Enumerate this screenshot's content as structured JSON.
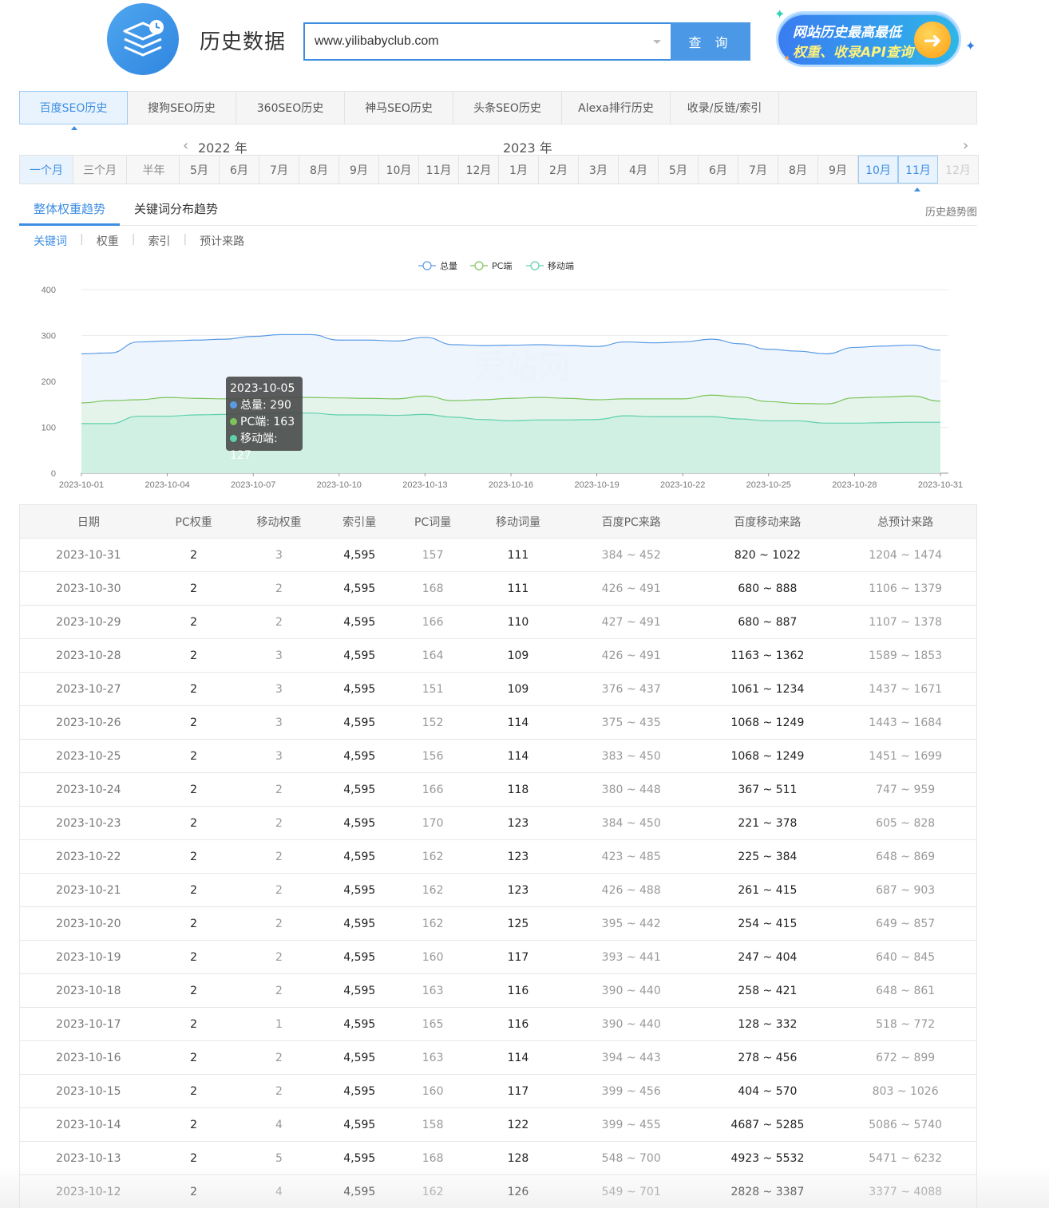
{
  "header": {
    "title": "历史数据",
    "search_value": "www.yilibabyclub.com",
    "search_button": "查 询",
    "promo_line1": "网站历史最高最低",
    "promo_line2": "权重、收录API查询"
  },
  "main_tabs": [
    "百度SEO历史",
    "搜狗SEO历史",
    "360SEO历史",
    "神马SEO历史",
    "头条SEO历史",
    "Alexa排行历史",
    "收录/反链/索引"
  ],
  "ranges": [
    "一个月",
    "三个月",
    "半年"
  ],
  "years": {
    "y2022": "2022 年",
    "y2023": "2023 年"
  },
  "months": [
    "5月",
    "6月",
    "7月",
    "8月",
    "9月",
    "10月",
    "11月",
    "12月",
    "1月",
    "2月",
    "3月",
    "4月",
    "5月",
    "6月",
    "7月",
    "8月",
    "9月",
    "10月",
    "11月",
    "12月"
  ],
  "sub_tabs": {
    "trend": "整体权重趋势",
    "keyword_dist": "关键词分布趋势",
    "history_chart": "历史趋势图"
  },
  "metric_tabs": [
    "关键词",
    "权重",
    "索引",
    "预计来路"
  ],
  "watermark": "爱站网",
  "tooltip": {
    "date": "2023-10-05",
    "total": "总量: 290",
    "pc": "PC端: 163",
    "mobile": "移动端: 127"
  },
  "colors": {
    "total": "#5b9be6",
    "pc": "#7cc45a",
    "mobile": "#5fd0ad",
    "accent": "#3d8ee2"
  },
  "chart_data": {
    "type": "area",
    "x": [
      "2023-10-01",
      "2023-10-02",
      "2023-10-03",
      "2023-10-04",
      "2023-10-05",
      "2023-10-06",
      "2023-10-07",
      "2023-10-08",
      "2023-10-09",
      "2023-10-10",
      "2023-10-11",
      "2023-10-12",
      "2023-10-13",
      "2023-10-14",
      "2023-10-15",
      "2023-10-16",
      "2023-10-17",
      "2023-10-18",
      "2023-10-19",
      "2023-10-20",
      "2023-10-21",
      "2023-10-22",
      "2023-10-23",
      "2023-10-24",
      "2023-10-25",
      "2023-10-26",
      "2023-10-27",
      "2023-10-28",
      "2023-10-29",
      "2023-10-30",
      "2023-10-31"
    ],
    "xticks": [
      "2023-10-01",
      "2023-10-04",
      "2023-10-07",
      "2023-10-10",
      "2023-10-13",
      "2023-10-16",
      "2023-10-19",
      "2023-10-22",
      "2023-10-25",
      "2023-10-28",
      "2023-10-31"
    ],
    "yticks": [
      0,
      100,
      200,
      300,
      400
    ],
    "ylim": [
      0,
      400
    ],
    "legend_position": "top-center",
    "series": [
      {
        "name": "总量",
        "values": [
          260,
          262,
          286,
          288,
          290,
          292,
          298,
          302,
          302,
          290,
          290,
          288,
          296,
          280,
          278,
          279,
          280,
          278,
          276,
          286,
          284,
          286,
          292,
          282,
          270,
          266,
          260,
          274,
          277,
          279,
          268
        ]
      },
      {
        "name": "PC端",
        "values": [
          153,
          158,
          160,
          165,
          163,
          162,
          162,
          165,
          165,
          164,
          163,
          162,
          168,
          158,
          160,
          163,
          165,
          163,
          160,
          162,
          162,
          162,
          170,
          166,
          156,
          152,
          151,
          164,
          166,
          168,
          157
        ]
      },
      {
        "name": "移动端",
        "values": [
          108,
          108,
          124,
          124,
          127,
          128,
          130,
          131,
          131,
          127,
          127,
          126,
          128,
          122,
          117,
          114,
          116,
          116,
          117,
          125,
          123,
          123,
          123,
          118,
          114,
          114,
          109,
          109,
          110,
          111,
          111
        ]
      }
    ]
  },
  "table": {
    "headers": [
      "日期",
      "PC权重",
      "移动权重",
      "索引量",
      "PC词量",
      "移动词量",
      "百度PC来路",
      "百度移动来路",
      "总预计来路"
    ],
    "rows": [
      [
        "2023-10-31",
        "2",
        "3",
        "4,595",
        "157",
        "111",
        "384 ~ 452",
        "820 ~ 1022",
        "1204 ~ 1474"
      ],
      [
        "2023-10-30",
        "2",
        "2",
        "4,595",
        "168",
        "111",
        "426 ~ 491",
        "680 ~ 888",
        "1106 ~ 1379"
      ],
      [
        "2023-10-29",
        "2",
        "2",
        "4,595",
        "166",
        "110",
        "427 ~ 491",
        "680 ~ 887",
        "1107 ~ 1378"
      ],
      [
        "2023-10-28",
        "2",
        "3",
        "4,595",
        "164",
        "109",
        "426 ~ 491",
        "1163 ~ 1362",
        "1589 ~ 1853"
      ],
      [
        "2023-10-27",
        "2",
        "3",
        "4,595",
        "151",
        "109",
        "376 ~ 437",
        "1061 ~ 1234",
        "1437 ~ 1671"
      ],
      [
        "2023-10-26",
        "2",
        "3",
        "4,595",
        "152",
        "114",
        "375 ~ 435",
        "1068 ~ 1249",
        "1443 ~ 1684"
      ],
      [
        "2023-10-25",
        "2",
        "3",
        "4,595",
        "156",
        "114",
        "383 ~ 450",
        "1068 ~ 1249",
        "1451 ~ 1699"
      ],
      [
        "2023-10-24",
        "2",
        "2",
        "4,595",
        "166",
        "118",
        "380 ~ 448",
        "367 ~ 511",
        "747 ~ 959"
      ],
      [
        "2023-10-23",
        "2",
        "2",
        "4,595",
        "170",
        "123",
        "384 ~ 450",
        "221 ~ 378",
        "605 ~ 828"
      ],
      [
        "2023-10-22",
        "2",
        "2",
        "4,595",
        "162",
        "123",
        "423 ~ 485",
        "225 ~ 384",
        "648 ~ 869"
      ],
      [
        "2023-10-21",
        "2",
        "2",
        "4,595",
        "162",
        "123",
        "426 ~ 488",
        "261 ~ 415",
        "687 ~ 903"
      ],
      [
        "2023-10-20",
        "2",
        "2",
        "4,595",
        "162",
        "125",
        "395 ~ 442",
        "254 ~ 415",
        "649 ~ 857"
      ],
      [
        "2023-10-19",
        "2",
        "2",
        "4,595",
        "160",
        "117",
        "393 ~ 441",
        "247 ~ 404",
        "640 ~ 845"
      ],
      [
        "2023-10-18",
        "2",
        "2",
        "4,595",
        "163",
        "116",
        "390 ~ 440",
        "258 ~ 421",
        "648 ~ 861"
      ],
      [
        "2023-10-17",
        "2",
        "1",
        "4,595",
        "165",
        "116",
        "390 ~ 440",
        "128 ~ 332",
        "518 ~ 772"
      ],
      [
        "2023-10-16",
        "2",
        "2",
        "4,595",
        "163",
        "114",
        "394 ~ 443",
        "278 ~ 456",
        "672 ~ 899"
      ],
      [
        "2023-10-15",
        "2",
        "2",
        "4,595",
        "160",
        "117",
        "399 ~ 456",
        "404 ~ 570",
        "803 ~ 1026"
      ],
      [
        "2023-10-14",
        "2",
        "4",
        "4,595",
        "158",
        "122",
        "399 ~ 455",
        "4687 ~ 5285",
        "5086 ~ 5740"
      ],
      [
        "2023-10-13",
        "2",
        "5",
        "4,595",
        "168",
        "128",
        "548 ~ 700",
        "4923 ~ 5532",
        "5471 ~ 6232"
      ],
      [
        "2023-10-12",
        "2",
        "4",
        "4,595",
        "162",
        "126",
        "549 ~ 701",
        "2828 ~ 3387",
        "3377 ~ 4088"
      ]
    ]
  }
}
